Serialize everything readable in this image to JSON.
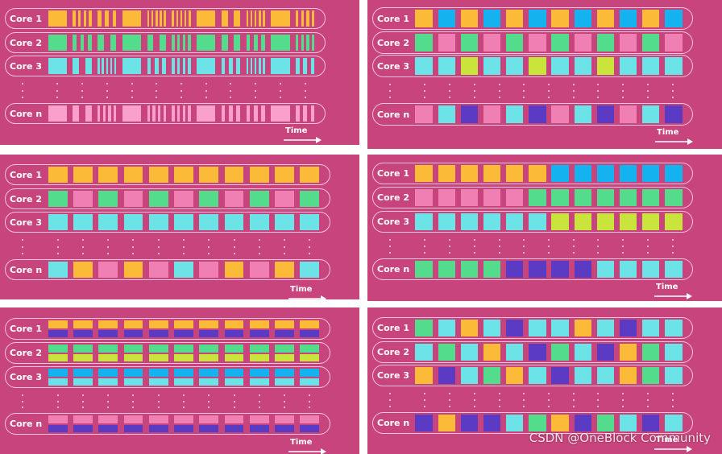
{
  "colors": {
    "O": "#fbbb39",
    "G": "#52dc8b",
    "C": "#6be3e7",
    "P": "#f07fb4",
    "B": "#14b2ef",
    "Y": "#c9e53c",
    "V": "#5b3bc4",
    "L": "#f9a0cc"
  },
  "time_label": "Time",
  "watermark": "CSDN @OneBlock Community",
  "panels": [
    {
      "rows": [
        {
          "label": "Core 1",
          "kind": "stripes",
          "color": "O",
          "seed": 1
        },
        {
          "label": "Core 2",
          "kind": "stripes",
          "color": "G",
          "seed": 2
        },
        {
          "label": "Core 3",
          "kind": "stripes",
          "color": "C",
          "seed": 3
        },
        {
          "label": "Core n",
          "kind": "stripes",
          "color": "L",
          "seed": 4
        }
      ]
    },
    {
      "rows": [
        {
          "label": "Core 1",
          "kind": "cells",
          "colors": [
            "O",
            "B",
            "O",
            "B",
            "O",
            "B",
            "O",
            "B",
            "O",
            "B",
            "O",
            "B"
          ]
        },
        {
          "label": "Core 2",
          "kind": "cells",
          "colors": [
            "G",
            "P",
            "G",
            "P",
            "G",
            "P",
            "G",
            "P",
            "G",
            "P",
            "G",
            "P"
          ]
        },
        {
          "label": "Core 3",
          "kind": "cells",
          "colors": [
            "C",
            "C",
            "Y",
            "C",
            "C",
            "Y",
            "C",
            "C",
            "Y",
            "C",
            "C",
            "C"
          ]
        },
        {
          "label": "Core n",
          "kind": "cells",
          "colors": [
            "P",
            "C",
            "V",
            "P",
            "C",
            "V",
            "P",
            "C",
            "V",
            "P",
            "C",
            "V"
          ]
        }
      ]
    },
    {
      "rows": [
        {
          "label": "Core 1",
          "kind": "cells",
          "colors": [
            "O",
            "O",
            "O",
            "O",
            "O",
            "O",
            "O",
            "O",
            "O",
            "O",
            "O"
          ]
        },
        {
          "label": "Core 2",
          "kind": "cells",
          "colors": [
            "G",
            "P",
            "G",
            "P",
            "G",
            "P",
            "G",
            "P",
            "G",
            "P",
            "G"
          ]
        },
        {
          "label": "Core 3",
          "kind": "cells",
          "colors": [
            "C",
            "C",
            "C",
            "C",
            "C",
            "C",
            "C",
            "C",
            "C",
            "C",
            "C"
          ]
        },
        {
          "label": "Core n",
          "kind": "cells",
          "colors": [
            "C",
            "O",
            "P",
            "O",
            "P",
            "C",
            "P",
            "O",
            "P",
            "O",
            "C"
          ]
        }
      ]
    },
    {
      "rows": [
        {
          "label": "Core 1",
          "kind": "cells",
          "colors": [
            "O",
            "O",
            "O",
            "O",
            "O",
            "O",
            "B",
            "B",
            "B",
            "B",
            "B",
            "B"
          ]
        },
        {
          "label": "Core 2",
          "kind": "cells",
          "colors": [
            "P",
            "P",
            "P",
            "P",
            "P",
            "G",
            "G",
            "G",
            "G",
            "G",
            "G",
            "G"
          ]
        },
        {
          "label": "Core 3",
          "kind": "cells",
          "colors": [
            "C",
            "C",
            "C",
            "C",
            "C",
            "C",
            "Y",
            "Y",
            "Y",
            "Y",
            "Y",
            "Y"
          ]
        },
        {
          "label": "Core n",
          "kind": "cells",
          "colors": [
            "G",
            "G",
            "G",
            "G",
            "V",
            "V",
            "V",
            "V",
            "C",
            "C",
            "C",
            "C"
          ]
        }
      ]
    },
    {
      "rows": [
        {
          "label": "Core 1",
          "kind": "split",
          "top": "O",
          "bottom": "V"
        },
        {
          "label": "Core 2",
          "kind": "split",
          "top": "G",
          "bottom": "Y"
        },
        {
          "label": "Core 3",
          "kind": "split",
          "top": "B",
          "bottom": "C"
        },
        {
          "label": "Core n",
          "kind": "split",
          "top": "P",
          "bottom": "V"
        }
      ]
    },
    {
      "rows": [
        {
          "label": "Core 1",
          "kind": "cells",
          "colors": [
            "G",
            "C",
            "O",
            "C",
            "V",
            "C",
            "C",
            "O",
            "C",
            "V",
            "C",
            "C"
          ]
        },
        {
          "label": "Core 2",
          "kind": "cells",
          "colors": [
            "C",
            "G",
            "C",
            "O",
            "C",
            "V",
            "G",
            "C",
            "V",
            "O",
            "G",
            "C"
          ]
        },
        {
          "label": "Core 3",
          "kind": "cells",
          "colors": [
            "O",
            "V",
            "C",
            "G",
            "O",
            "C",
            "V",
            "C",
            "C",
            "O",
            "G",
            "C"
          ]
        },
        {
          "label": "Core n",
          "kind": "cells",
          "colors": [
            "V",
            "O",
            "V",
            "V",
            "C",
            "G",
            "O",
            "V",
            "G",
            "C",
            "V",
            "C"
          ]
        }
      ]
    }
  ]
}
